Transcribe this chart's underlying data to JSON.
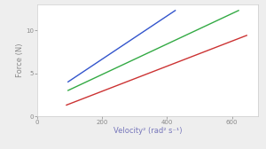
{
  "title": "",
  "xlabel": "Velocity² (rad² s⁻¹)",
  "ylabel": "Force (N)",
  "xlabel_color": "#7777bb",
  "ylabel_color": "#888888",
  "xlim": [
    0,
    680
  ],
  "ylim": [
    0,
    13
  ],
  "xticks": [
    0,
    200,
    400,
    600
  ],
  "yticks": [
    0,
    5,
    10
  ],
  "lines": [
    {
      "color": "#3355cc",
      "x_start": 95,
      "x_end": 425,
      "y_start": 4.0,
      "y_end": 12.3
    },
    {
      "color": "#33aa44",
      "x_start": 95,
      "x_end": 620,
      "y_start": 3.0,
      "y_end": 12.3
    },
    {
      "color": "#cc3333",
      "x_start": 90,
      "x_end": 645,
      "y_start": 1.3,
      "y_end": 9.4
    }
  ],
  "bg_color": "#eeeeee",
  "plot_bg": "#ffffff",
  "font_size": 6,
  "label_font_size": 6,
  "line_width": 1.0,
  "tick_color": "#888888",
  "spine_color": "#cccccc"
}
